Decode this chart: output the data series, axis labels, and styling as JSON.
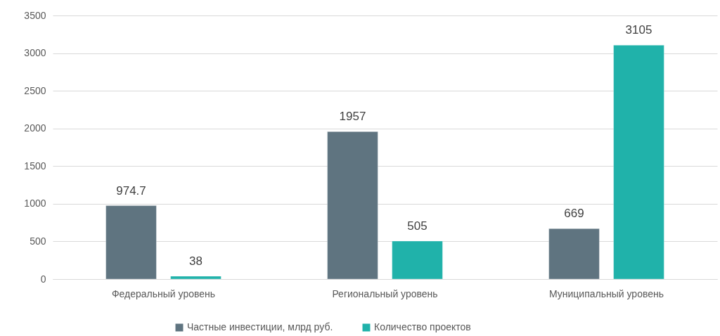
{
  "chart_data": {
    "type": "bar",
    "categories": [
      "Федеральный уровень",
      "Региональный уровень",
      "Муниципальный уровень"
    ],
    "series": [
      {
        "name": "Частные инвестиции, млрд руб.",
        "color": "#5f7480",
        "values": [
          974.7,
          1957,
          669
        ]
      },
      {
        "name": "Количество проектов",
        "color": "#20b2aa",
        "values": [
          38,
          505,
          3105
        ]
      }
    ],
    "ylim": [
      0,
      3500
    ],
    "yticks": [
      0,
      500,
      1000,
      1500,
      2000,
      2500,
      3000,
      3500
    ],
    "grid": "y",
    "legend": "bottom",
    "data_labels": true
  }
}
